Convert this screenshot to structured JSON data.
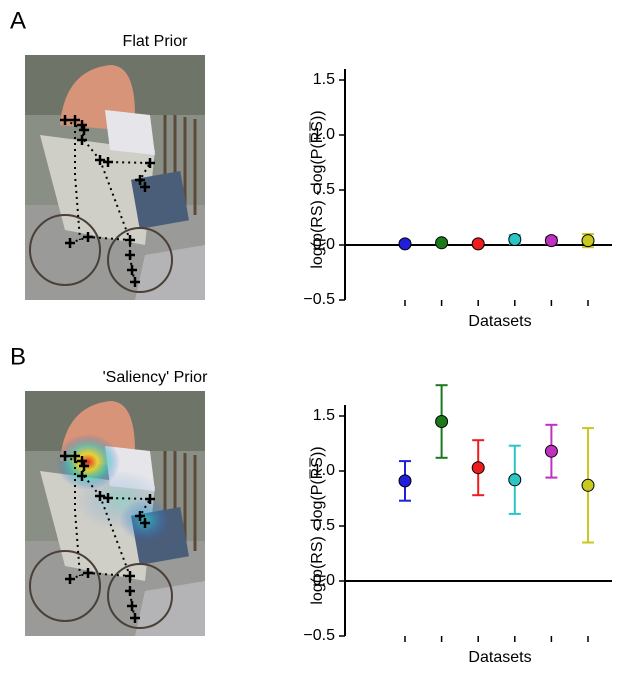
{
  "chart_data": [
    {
      "type": "errorbar",
      "panel_label": "A",
      "image_title": "Flat Prior",
      "x_label": "Datasets",
      "y_label": "log(p(RS) - log(P(R̅S̅))",
      "categories": [
        null,
        null,
        null,
        null,
        null,
        null
      ],
      "values": [
        0.01,
        0.02,
        0.01,
        0.05,
        0.04,
        0.04
      ],
      "errors": [
        0.02,
        0.02,
        0.02,
        0.04,
        0.03,
        0.06
      ],
      "colors": [
        "#1f1fdc",
        "#1a7a1a",
        "#ee1c1c",
        "#2cc5c5",
        "#c030c0",
        "#c8c820"
      ],
      "ylim": [
        -0.5,
        1.6
      ],
      "yticks": [
        {
          "value": -0.5,
          "label": "−0.5"
        },
        {
          "value": 0,
          "label": "0.0"
        },
        0.5,
        {
          "value": 1,
          "label": "1.0"
        },
        1.5
      ]
    },
    {
      "type": "errorbar",
      "panel_label": "B",
      "image_title": "'Saliency' Prior",
      "x_label": "Datasets",
      "y_label": "log(p(RS) - log(P(R̅S̅))",
      "categories": [
        null,
        null,
        null,
        null,
        null,
        null
      ],
      "values": [
        0.91,
        1.45,
        1.03,
        0.92,
        1.18,
        0.87
      ],
      "errors": [
        0.18,
        0.33,
        0.25,
        0.31,
        0.24,
        0.52
      ],
      "colors": [
        "#1f1fdc",
        "#1a7a1a",
        "#ee1c1c",
        "#2cc5c5",
        "#c030c0",
        "#c8c820"
      ],
      "ylim": [
        -0.5,
        1.6
      ],
      "yticks": [
        {
          "value": -0.5,
          "label": "−0.5"
        },
        {
          "value": 0,
          "label": "0.0"
        },
        0.5,
        {
          "value": 1,
          "label": "1.0"
        },
        1.5
      ]
    }
  ]
}
